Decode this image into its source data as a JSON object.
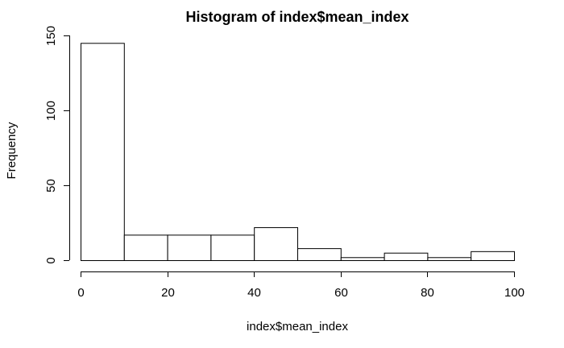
{
  "chart_data": {
    "type": "bar",
    "title": "Histogram of index$mean_index",
    "xlabel": "index$mean_index",
    "ylabel": "Frequency",
    "bins": [
      {
        "start": 0,
        "end": 10,
        "count": 145
      },
      {
        "start": 10,
        "end": 20,
        "count": 17
      },
      {
        "start": 20,
        "end": 30,
        "count": 17
      },
      {
        "start": 30,
        "end": 40,
        "count": 17
      },
      {
        "start": 40,
        "end": 50,
        "count": 22
      },
      {
        "start": 50,
        "end": 60,
        "count": 8
      },
      {
        "start": 60,
        "end": 70,
        "count": 2
      },
      {
        "start": 70,
        "end": 80,
        "count": 5
      },
      {
        "start": 80,
        "end": 90,
        "count": 2
      },
      {
        "start": 90,
        "end": 100,
        "count": 6
      }
    ],
    "xlim": [
      0,
      100
    ],
    "ylim": [
      0,
      150
    ],
    "x_ticks": [
      "0",
      "20",
      "40",
      "60",
      "80",
      "100"
    ],
    "y_ticks": [
      "0",
      "50",
      "100",
      "150"
    ],
    "bar_fill": "#ffffff",
    "bar_stroke": "#000000",
    "grid": false,
    "legend": "none"
  }
}
